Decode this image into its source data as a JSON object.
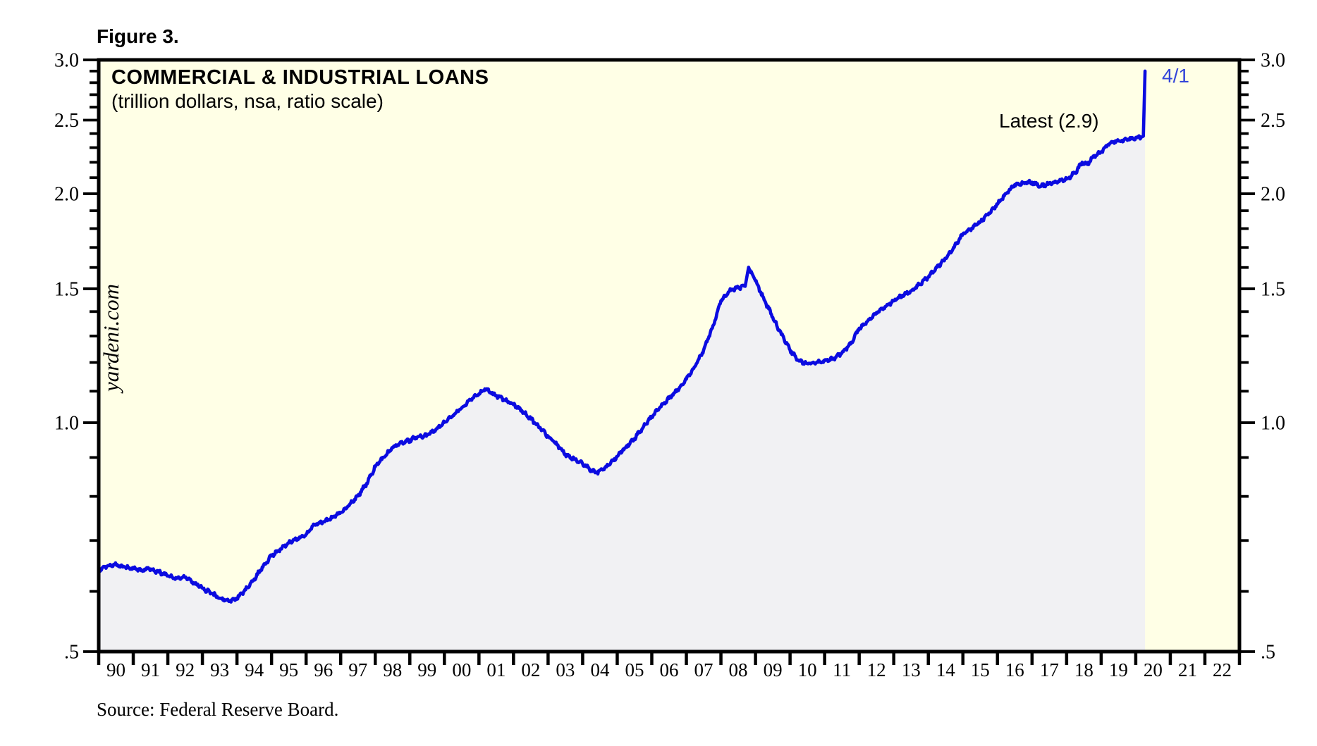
{
  "figure_label": "Figure 3.",
  "chart": {
    "title": "COMMERCIAL & INDUSTRIAL LOANS",
    "subtitle": "(trillion dollars, nsa, ratio scale)",
    "watermark": "yardeni.com",
    "annotation_latest": "Latest (2.9)",
    "annotation_date": "4/1",
    "source": "Source: Federal Reserve Board.",
    "colors": {
      "line": "#0b0be0",
      "area_fill": "#f1f1f3",
      "plot_background": "#ffffe6",
      "page_background": "#ffffff",
      "axis": "#000000",
      "date_annotation": "#3344d9"
    }
  },
  "chart_data": {
    "type": "line",
    "title": "COMMERCIAL & INDUSTRIAL LOANS",
    "subtitle": "(trillion dollars, nsa, ratio scale)",
    "x_axis": {
      "start_year": 1990,
      "end_year": 2023,
      "tick_labels": [
        "90",
        "91",
        "92",
        "93",
        "94",
        "95",
        "96",
        "97",
        "98",
        "99",
        "00",
        "01",
        "02",
        "03",
        "04",
        "05",
        "06",
        "07",
        "08",
        "09",
        "10",
        "11",
        "12",
        "13",
        "14",
        "15",
        "16",
        "17",
        "18",
        "19",
        "20",
        "21",
        "22"
      ]
    },
    "y_axis": {
      "scale": "log-ratio",
      "min": 0.5,
      "max": 3.0,
      "minor_tick_step": 0.1,
      "ticks": [
        {
          "value": 3.0,
          "label": "3.0"
        },
        {
          "value": 2.5,
          "label": "2.5"
        },
        {
          "value": 2.0,
          "label": "2.0"
        },
        {
          "value": 1.5,
          "label": "1.5"
        },
        {
          "value": 1.0,
          "label": "1.0"
        },
        {
          "value": 0.5,
          "label": ".5"
        }
      ]
    },
    "legend_position": "none",
    "grid": false,
    "latest_value": 2.9,
    "latest_date_label": "4/1",
    "series": [
      {
        "name": "Commercial & industrial loans (trillion dollars, nsa)",
        "points": [
          [
            1990.0,
            0.64
          ],
          [
            1990.25,
            0.648
          ],
          [
            1990.45,
            0.651
          ],
          [
            1990.7,
            0.646
          ],
          [
            1991.0,
            0.643
          ],
          [
            1991.25,
            0.64
          ],
          [
            1991.45,
            0.643
          ],
          [
            1991.75,
            0.636
          ],
          [
            1992.0,
            0.629
          ],
          [
            1992.25,
            0.624
          ],
          [
            1992.5,
            0.626
          ],
          [
            1992.75,
            0.616
          ],
          [
            1993.0,
            0.606
          ],
          [
            1993.25,
            0.597
          ],
          [
            1993.5,
            0.588
          ],
          [
            1993.75,
            0.583
          ],
          [
            1994.0,
            0.588
          ],
          [
            1994.25,
            0.603
          ],
          [
            1994.5,
            0.623
          ],
          [
            1994.75,
            0.646
          ],
          [
            1995.0,
            0.668
          ],
          [
            1995.25,
            0.682
          ],
          [
            1995.5,
            0.695
          ],
          [
            1995.75,
            0.704
          ],
          [
            1996.0,
            0.713
          ],
          [
            1996.25,
            0.735
          ],
          [
            1996.5,
            0.741
          ],
          [
            1996.75,
            0.75
          ],
          [
            1997.0,
            0.762
          ],
          [
            1997.25,
            0.779
          ],
          [
            1997.5,
            0.801
          ],
          [
            1997.75,
            0.832
          ],
          [
            1998.0,
            0.875
          ],
          [
            1998.25,
            0.901
          ],
          [
            1998.5,
            0.928
          ],
          [
            1998.75,
            0.941
          ],
          [
            1999.0,
            0.949
          ],
          [
            1999.25,
            0.959
          ],
          [
            1999.5,
            0.963
          ],
          [
            1999.75,
            0.979
          ],
          [
            2000.0,
            1.001
          ],
          [
            2000.25,
            1.022
          ],
          [
            2000.5,
            1.046
          ],
          [
            2000.75,
            1.071
          ],
          [
            2001.0,
            1.091
          ],
          [
            2001.17,
            1.108
          ],
          [
            2001.33,
            1.096
          ],
          [
            2001.5,
            1.086
          ],
          [
            2001.75,
            1.071
          ],
          [
            2002.0,
            1.056
          ],
          [
            2002.25,
            1.036
          ],
          [
            2002.5,
            1.011
          ],
          [
            2002.75,
            0.986
          ],
          [
            2003.0,
            0.959
          ],
          [
            2003.25,
            0.936
          ],
          [
            2003.5,
            0.909
          ],
          [
            2003.75,
            0.896
          ],
          [
            2004.0,
            0.883
          ],
          [
            2004.25,
            0.866
          ],
          [
            2004.42,
            0.86
          ],
          [
            2004.6,
            0.869
          ],
          [
            2004.75,
            0.879
          ],
          [
            2005.0,
            0.903
          ],
          [
            2005.25,
            0.929
          ],
          [
            2005.5,
            0.953
          ],
          [
            2005.75,
            0.986
          ],
          [
            2006.0,
            1.019
          ],
          [
            2006.25,
            1.049
          ],
          [
            2006.5,
            1.076
          ],
          [
            2006.75,
            1.106
          ],
          [
            2007.0,
            1.141
          ],
          [
            2007.25,
            1.186
          ],
          [
            2007.5,
            1.246
          ],
          [
            2007.75,
            1.331
          ],
          [
            2008.0,
            1.446
          ],
          [
            2008.25,
            1.491
          ],
          [
            2008.5,
            1.506
          ],
          [
            2008.7,
            1.511
          ],
          [
            2008.8,
            1.601
          ],
          [
            2008.9,
            1.571
          ],
          [
            2009.0,
            1.536
          ],
          [
            2009.25,
            1.451
          ],
          [
            2009.5,
            1.376
          ],
          [
            2009.75,
            1.306
          ],
          [
            2010.0,
            1.246
          ],
          [
            2010.25,
            1.206
          ],
          [
            2010.5,
            1.196
          ],
          [
            2010.75,
            1.199
          ],
          [
            2011.0,
            1.206
          ],
          [
            2011.25,
            1.213
          ],
          [
            2011.5,
            1.236
          ],
          [
            2011.75,
            1.269
          ],
          [
            2012.0,
            1.331
          ],
          [
            2012.25,
            1.361
          ],
          [
            2012.5,
            1.396
          ],
          [
            2012.75,
            1.421
          ],
          [
            2013.0,
            1.446
          ],
          [
            2013.25,
            1.471
          ],
          [
            2013.5,
            1.491
          ],
          [
            2013.75,
            1.521
          ],
          [
            2014.0,
            1.556
          ],
          [
            2014.25,
            1.601
          ],
          [
            2014.5,
            1.646
          ],
          [
            2014.75,
            1.701
          ],
          [
            2015.0,
            1.771
          ],
          [
            2015.25,
            1.801
          ],
          [
            2015.5,
            1.836
          ],
          [
            2015.75,
            1.886
          ],
          [
            2016.0,
            1.938
          ],
          [
            2016.25,
            2.001
          ],
          [
            2016.5,
            2.056
          ],
          [
            2016.75,
            2.066
          ],
          [
            2017.0,
            2.071
          ],
          [
            2017.25,
            2.046
          ],
          [
            2017.5,
            2.061
          ],
          [
            2017.75,
            2.076
          ],
          [
            2018.0,
            2.091
          ],
          [
            2018.25,
            2.131
          ],
          [
            2018.45,
            2.201
          ],
          [
            2018.6,
            2.186
          ],
          [
            2018.75,
            2.231
          ],
          [
            2019.0,
            2.271
          ],
          [
            2019.2,
            2.321
          ],
          [
            2019.4,
            2.346
          ],
          [
            2019.6,
            2.351
          ],
          [
            2019.8,
            2.361
          ],
          [
            2020.0,
            2.371
          ],
          [
            2020.15,
            2.373
          ],
          [
            2020.22,
            2.381
          ],
          [
            2020.27,
            2.9
          ]
        ]
      }
    ]
  }
}
